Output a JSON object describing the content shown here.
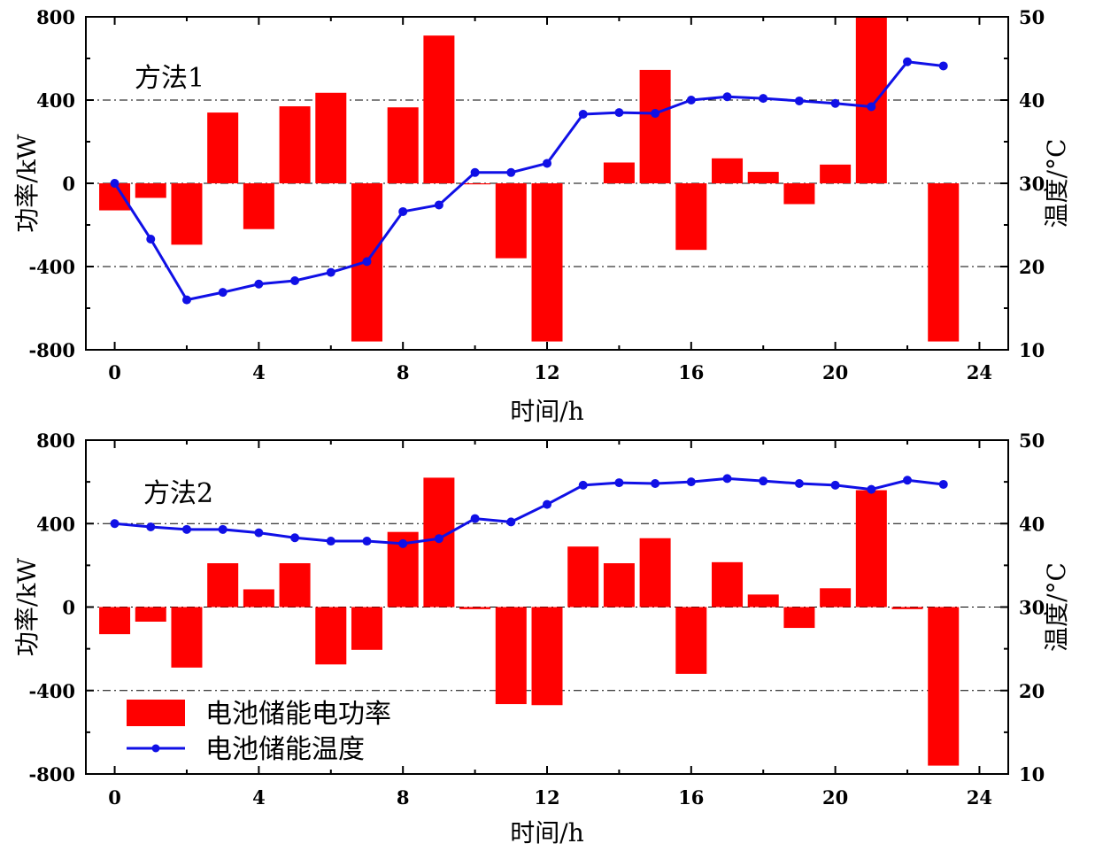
{
  "colors": {
    "bar": "#ff0000",
    "line": "#1010e6",
    "axis": "#000000",
    "grid": "#000000"
  },
  "legend": {
    "bar_label": "电池储能电功率",
    "line_label": "电池储能温度",
    "placement": "bottom-left of lower panel"
  },
  "chart_data": [
    {
      "type": "bar",
      "panel_label": "方法1",
      "xlabel": "时间/h",
      "ylabel_left": "功率/kW",
      "ylabel_right": "温度/°C",
      "xlim": [
        -0.8,
        24.8
      ],
      "ylim_left": [
        -800,
        800
      ],
      "ylim_right": [
        10,
        50
      ],
      "xticks": [
        0,
        4,
        8,
        12,
        16,
        20,
        24
      ],
      "yticks_left": [
        -800,
        -400,
        0,
        400,
        800
      ],
      "yticks_right": [
        10,
        20,
        30,
        40,
        50
      ],
      "grid": "dash-dot horizontal at left ticks",
      "x": [
        0,
        1,
        2,
        3,
        4,
        5,
        6,
        7,
        8,
        9,
        10,
        11,
        12,
        13,
        14,
        15,
        16,
        17,
        18,
        19,
        20,
        21,
        22,
        23
      ],
      "series": [
        {
          "name": "电池储能电功率",
          "type": "bar",
          "axis": "left",
          "values": [
            -130,
            -70,
            -295,
            340,
            -220,
            370,
            435,
            -760,
            365,
            710,
            -5,
            -360,
            -760,
            0,
            100,
            545,
            -320,
            120,
            55,
            -100,
            90,
            800,
            0,
            -760
          ]
        },
        {
          "name": "电池储能温度",
          "type": "line",
          "axis": "right",
          "values": [
            30.0,
            23.3,
            16.0,
            16.9,
            17.9,
            18.3,
            19.3,
            20.6,
            26.6,
            27.4,
            31.3,
            31.3,
            32.4,
            38.3,
            38.5,
            38.4,
            40.0,
            40.4,
            40.2,
            39.9,
            39.6,
            39.2,
            44.6,
            44.1
          ]
        }
      ]
    },
    {
      "type": "bar",
      "panel_label": "方法2",
      "xlabel": "时间/h",
      "ylabel_left": "功率/kW",
      "ylabel_right": "温度/°C",
      "xlim": [
        -0.8,
        24.8
      ],
      "ylim_left": [
        -800,
        800
      ],
      "ylim_right": [
        10,
        50
      ],
      "xticks": [
        0,
        4,
        8,
        12,
        16,
        20,
        24
      ],
      "yticks_left": [
        -800,
        -400,
        0,
        400,
        800
      ],
      "yticks_right": [
        10,
        20,
        30,
        40,
        50
      ],
      "grid": "dash-dot horizontal at left ticks",
      "x": [
        0,
        1,
        2,
        3,
        4,
        5,
        6,
        7,
        8,
        9,
        10,
        11,
        12,
        13,
        14,
        15,
        16,
        17,
        18,
        19,
        20,
        21,
        22,
        23
      ],
      "series": [
        {
          "name": "电池储能电功率",
          "type": "bar",
          "axis": "left",
          "values": [
            -130,
            -70,
            -290,
            210,
            85,
            210,
            -275,
            -205,
            360,
            620,
            -10,
            -465,
            -470,
            290,
            210,
            330,
            -320,
            215,
            60,
            -100,
            90,
            560,
            -10,
            -760
          ]
        },
        {
          "name": "电池储能温度",
          "type": "line",
          "axis": "right",
          "values": [
            40.0,
            39.6,
            39.3,
            39.3,
            38.9,
            38.3,
            37.9,
            37.9,
            37.6,
            38.2,
            40.6,
            40.2,
            42.3,
            44.6,
            44.9,
            44.8,
            45.0,
            45.4,
            45.1,
            44.8,
            44.6,
            44.1,
            45.2,
            44.7
          ]
        }
      ]
    }
  ]
}
